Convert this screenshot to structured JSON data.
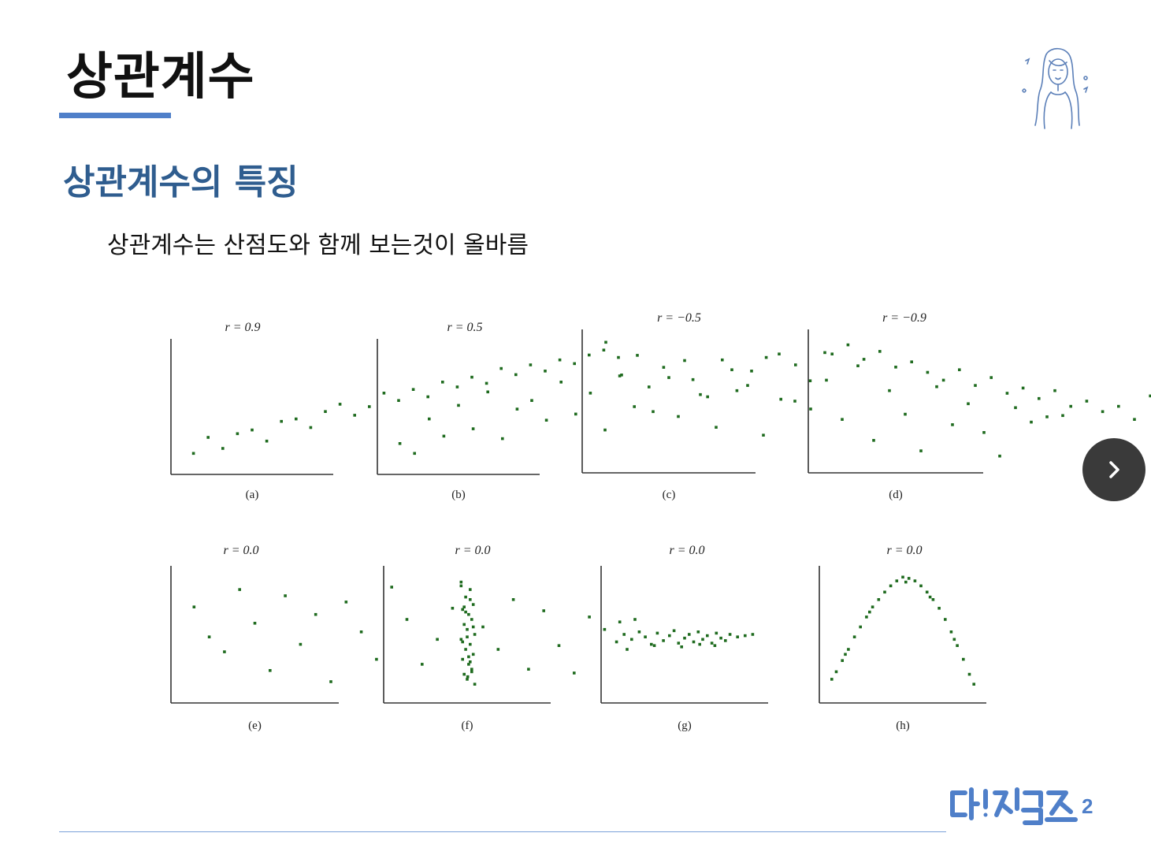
{
  "page": {
    "title": "상관계수",
    "section_title": "상관계수의 특징",
    "body_text": "상관계수는 산점도와 함께 보는것이 올바름"
  },
  "colors": {
    "accent": "#4f7fc9",
    "section": "#2f5d8f",
    "point": "#1f6b1f",
    "next_button": "#3a3a3a"
  },
  "icons": {
    "avatar": "woman-illustration-icon",
    "next": "chevron-right-icon",
    "logo": "brand-logo"
  },
  "logo_text": "데!잇걸즈2",
  "chart_data": [
    {
      "type": "scatter",
      "title": "r = 0.9",
      "caption": "(a)",
      "pattern": "strong-positive",
      "x": [
        1,
        2,
        3,
        4,
        5,
        6,
        7,
        8,
        9,
        10,
        11,
        12,
        13,
        14,
        15,
        16,
        17,
        18,
        19,
        20,
        21,
        22,
        23,
        24,
        25,
        26,
        27,
        28,
        29,
        30
      ],
      "y": [
        1.2,
        2.5,
        1.6,
        2.8,
        3.1,
        2.2,
        3.8,
        4.0,
        3.3,
        4.6,
        5.2,
        4.3,
        5.0,
        6.1,
        5.5,
        6.4,
        5.8,
        7.0,
        6.6,
        7.4,
        6.9,
        8.1,
        7.6,
        8.4,
        7.9,
        8.8,
        8.5,
        9.2,
        9.6,
        9.0
      ]
    },
    {
      "type": "scatter",
      "title": "r = 0.5",
      "caption": "(b)",
      "pattern": "moderate-positive",
      "x": [
        1,
        2,
        3,
        4,
        5,
        6,
        7,
        8,
        9,
        10,
        11,
        12,
        13,
        14,
        15,
        16,
        17,
        18,
        19,
        20,
        21,
        22,
        23,
        24,
        25,
        26,
        27,
        28,
        29,
        30
      ],
      "y": [
        2.0,
        1.2,
        4.0,
        2.6,
        5.1,
        3.2,
        6.2,
        2.4,
        4.8,
        5.5,
        3.9,
        7.0,
        4.4,
        6.1,
        3.1,
        7.5,
        5.0,
        6.6,
        8.2,
        4.2,
        7.2,
        5.8,
        8.8,
        6.3,
        7.9,
        9.0,
        5.6,
        8.4,
        7.1,
        9.4
      ]
    },
    {
      "type": "scatter",
      "title": "r = −0.5",
      "caption": "(c)",
      "pattern": "moderate-negative",
      "x": [
        1,
        2,
        3,
        4,
        5,
        6,
        7,
        8,
        9,
        10,
        11,
        12,
        13,
        14,
        15,
        16,
        17,
        18,
        19,
        20,
        21,
        22,
        23,
        24,
        25,
        26,
        27,
        28,
        29,
        30
      ],
      "y": [
        9.5,
        7.0,
        8.5,
        4.2,
        6.8,
        8.1,
        5.5,
        3.0,
        7.4,
        6.2,
        2.4,
        8.6,
        5.0,
        4.4,
        6.6,
        3.6,
        7.7,
        2.0,
        5.8,
        4.0,
        1.2,
        6.1,
        3.2,
        4.8,
        2.6,
        0.8,
        4.5,
        3.4,
        3.8,
        3.9
      ]
    },
    {
      "type": "scatter",
      "title": "r = −0.9",
      "caption": "(d)",
      "pattern": "strong-negative",
      "x": [
        1,
        2,
        3,
        4,
        5,
        6,
        7,
        8,
        9,
        10,
        11,
        12,
        13,
        14,
        15,
        16,
        17,
        18,
        19,
        20,
        21,
        22,
        23,
        24,
        25,
        26,
        27,
        28,
        29,
        30
      ],
      "y": [
        8.6,
        9.3,
        8.2,
        8.8,
        7.6,
        8.0,
        7.2,
        6.6,
        7.4,
        6.2,
        6.8,
        5.6,
        6.0,
        5.2,
        5.8,
        4.6,
        5.0,
        4.2,
        4.6,
        3.6,
        5.4,
        3.0,
        3.6,
        2.4,
        2.8,
        1.8,
        2.2,
        1.2,
        0.9,
        0.4
      ]
    },
    {
      "type": "scatter",
      "title": "r = 0.0",
      "caption": "(e)",
      "pattern": "no-correlation-cloud",
      "x": [
        1,
        2,
        3,
        4,
        5,
        6,
        7,
        8,
        9,
        10,
        11,
        12,
        13,
        14,
        15,
        16,
        17,
        18,
        19,
        20,
        21,
        22,
        23,
        24,
        25,
        26,
        27,
        28,
        29,
        30
      ],
      "y": [
        7.2,
        4.8,
        3.6,
        8.6,
        5.9,
        2.1,
        8.1,
        4.2,
        6.6,
        1.2,
        7.6,
        5.2,
        3.0,
        8.8,
        6.2,
        2.6,
        4.6,
        7.1,
        1.6,
        5.6,
        3.8,
        7.8,
        2.2,
        6.9,
        4.1,
        1.9,
        6.4,
        5.4,
        6.0,
        6.2
      ]
    },
    {
      "type": "scatter",
      "title": "r = 0.0",
      "caption": "(f)",
      "pattern": "vertical-band",
      "x": [
        4.6,
        5.2,
        4.9,
        5.4,
        4.7,
        5.1,
        5.3,
        4.8,
        5.0,
        5.5,
        4.6,
        5.2,
        4.9,
        5.4,
        4.7,
        5.1,
        5.3,
        4.8,
        5.0,
        5.5,
        4.6,
        5.2,
        4.9,
        5.4,
        4.7,
        5.1,
        5.3,
        4.8,
        5.0,
        5.2
      ],
      "y": [
        9.2,
        8.6,
        8.0,
        7.4,
        7.0,
        6.6,
        6.2,
        5.8,
        5.4,
        5.0,
        4.6,
        4.2,
        3.8,
        3.4,
        3.0,
        2.6,
        2.2,
        1.8,
        1.4,
        1.0,
        8.9,
        7.8,
        6.8,
        5.6,
        4.4,
        3.2,
        2.0,
        7.2,
        4.8,
        2.8
      ]
    },
    {
      "type": "scatter",
      "title": "r = 0.0",
      "caption": "(g)",
      "pattern": "horizontal-band",
      "x": [
        0.5,
        1.0,
        1.5,
        2.0,
        2.4,
        2.8,
        3.2,
        3.6,
        4.0,
        4.3,
        4.6,
        5.0,
        5.3,
        5.6,
        5.9,
        6.2,
        6.5,
        6.8,
        7.1,
        7.4,
        7.7,
        8.0,
        8.5,
        9.0,
        9.5,
        1.2,
        3.0,
        4.8,
        6.0,
        7.0
      ],
      "y": [
        4.4,
        5.0,
        4.6,
        5.2,
        4.8,
        4.2,
        5.1,
        4.5,
        4.9,
        5.3,
        4.3,
        4.7,
        5.0,
        4.4,
        5.2,
        4.6,
        4.9,
        4.3,
        5.1,
        4.7,
        4.5,
        5.0,
        4.8,
        4.9,
        5.0,
        3.8,
        4.1,
        4.0,
        4.2,
        4.1
      ]
    },
    {
      "type": "scatter",
      "title": "r = 0.0",
      "caption": "(h)",
      "pattern": "inverted-u",
      "x": [
        0.3,
        0.6,
        1.0,
        1.4,
        1.8,
        2.2,
        2.6,
        3.0,
        3.4,
        3.8,
        4.2,
        4.6,
        5.0,
        5.4,
        5.8,
        6.2,
        6.6,
        7.0,
        7.4,
        7.8,
        8.2,
        8.6,
        9.0,
        9.4,
        9.7,
        1.2,
        2.8,
        5.2,
        6.8,
        8.4
      ],
      "y": [
        1.4,
        2.0,
        2.9,
        3.8,
        4.8,
        5.6,
        6.4,
        7.2,
        7.8,
        8.4,
        8.9,
        9.3,
        9.6,
        9.5,
        9.3,
        8.9,
        8.4,
        7.8,
        7.1,
        6.2,
        5.2,
        4.1,
        3.0,
        1.8,
        1.0,
        3.4,
        6.8,
        9.2,
        8.0,
        4.6
      ]
    }
  ]
}
